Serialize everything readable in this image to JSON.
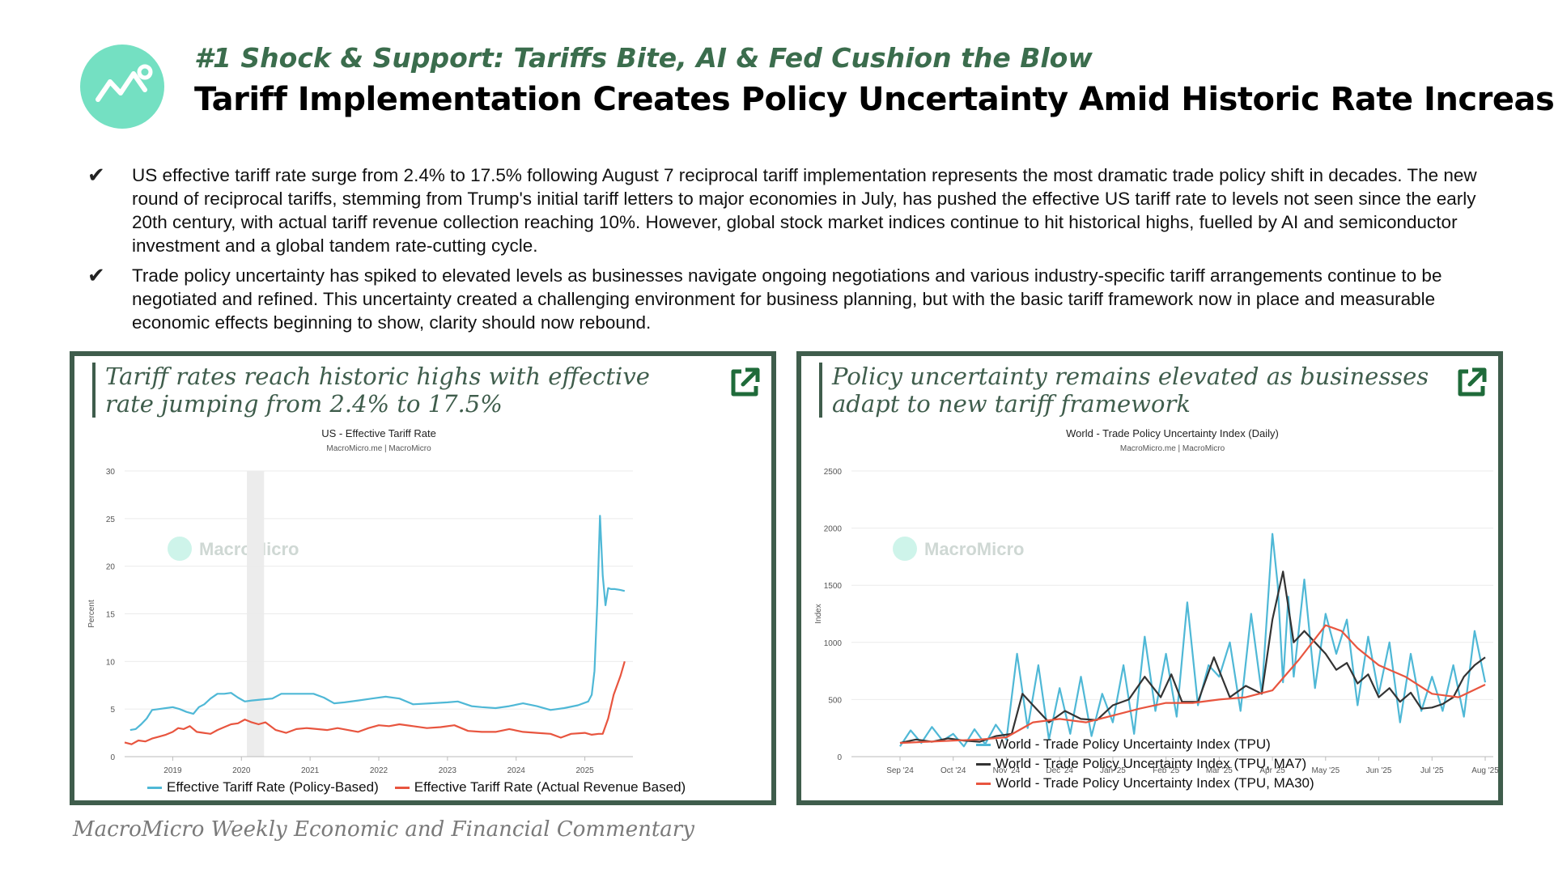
{
  "header": {
    "kicker": "#1 Shock & Support: Tariffs Bite, AI & Fed Cushion the Blow",
    "title": "Tariff Implementation Creates Policy Uncertainty Amid Historic Rate Increases"
  },
  "bullets": [
    "US effective tariff rate surge from 2.4% to 17.5% following August 7 reciprocal tariff implementation represents the most dramatic trade policy shift in decades. The new round of reciprocal tariffs, stemming from Trump's initial tariff letters to major economies in July, has pushed the effective US tariff rate to levels not seen since the early 20th century, with actual tariff revenue collection reaching 10%. However, global stock market indices continue to hit historical highs, fuelled by AI and semiconductor investment and a global tandem rate-cutting cycle.",
    "Trade policy uncertainty has spiked to elevated levels as businesses navigate ongoing negotiations and various industry-specific tariff arrangements continue to be negotiated and refined. This uncertainty created a challenging environment for business planning, but with the basic tariff framework now in place and measurable economic effects beginning to show, clarity should now rebound."
  ],
  "panels": {
    "left": {
      "heading": "Tariff rates reach historic highs with effective rate jumping from 2.4% to 17.5%"
    },
    "right": {
      "heading": "Policy uncertainty remains elevated as businesses adapt to new tariff framework"
    }
  },
  "footer": "MacroMicro Weekly Economic and Financial Commentary",
  "watermark": "MacroMicro",
  "colors": {
    "teal": "#74e0c2",
    "dark_green": "#3f5d4c",
    "blue": "#4fb8d6",
    "red": "#e8553f",
    "black": "#333333"
  },
  "chart_data": [
    {
      "type": "line",
      "title": "US - Effective Tariff Rate",
      "subtitle": "MacroMicro.me | MacroMicro",
      "ylabel": "Percent",
      "ylim": [
        0,
        30
      ],
      "yticks": [
        0,
        5,
        10,
        15,
        20,
        25,
        30
      ],
      "xlim": [
        2018.3,
        2025.7
      ],
      "xticks": [
        2019,
        2020,
        2021,
        2022,
        2023,
        2024,
        2025
      ],
      "xtick_labels": [
        "2019",
        "2020",
        "2021",
        "2022",
        "2023",
        "2024",
        "2025"
      ],
      "shaded_range": [
        2020.08,
        2020.33
      ],
      "legend_position": "bottom",
      "series": [
        {
          "name": "Effective Tariff Rate (Policy-Based)",
          "color": "#4fb8d6",
          "x": [
            2018.38,
            2018.46,
            2018.54,
            2018.62,
            2018.7,
            2018.8,
            2018.9,
            2019.0,
            2019.1,
            2019.2,
            2019.3,
            2019.38,
            2019.46,
            2019.55,
            2019.65,
            2019.75,
            2019.85,
            2019.95,
            2020.05,
            2020.15,
            2020.3,
            2020.45,
            2020.58,
            2020.75,
            2020.9,
            2021.05,
            2021.2,
            2021.35,
            2021.5,
            2021.7,
            2021.9,
            2022.1,
            2022.3,
            2022.5,
            2022.75,
            2023.0,
            2023.15,
            2023.35,
            2023.5,
            2023.7,
            2023.9,
            2024.1,
            2024.3,
            2024.5,
            2024.7,
            2024.9,
            2025.05,
            2025.1,
            2025.14,
            2025.18,
            2025.22,
            2025.26,
            2025.3,
            2025.34,
            2025.38,
            2025.44,
            2025.52,
            2025.58
          ],
          "values": [
            2.8,
            2.9,
            3.4,
            4.0,
            4.9,
            5.0,
            5.1,
            5.2,
            5.0,
            4.7,
            4.5,
            5.2,
            5.5,
            6.1,
            6.6,
            6.6,
            6.7,
            6.2,
            5.8,
            5.9,
            6.0,
            6.1,
            6.6,
            6.6,
            6.6,
            6.6,
            6.2,
            5.6,
            5.7,
            5.9,
            6.1,
            6.3,
            6.1,
            5.5,
            5.6,
            5.7,
            5.8,
            5.3,
            5.2,
            5.1,
            5.3,
            5.6,
            5.3,
            4.9,
            5.1,
            5.4,
            5.8,
            6.5,
            9.0,
            16.0,
            25.3,
            19.0,
            15.9,
            17.7,
            17.6,
            17.6,
            17.5,
            17.4
          ]
        },
        {
          "name": "Effective Tariff Rate (Actual Revenue Based)",
          "color": "#e8553f",
          "x": [
            2018.3,
            2018.4,
            2018.5,
            2018.6,
            2018.7,
            2018.8,
            2018.9,
            2019.0,
            2019.08,
            2019.16,
            2019.25,
            2019.35,
            2019.45,
            2019.55,
            2019.65,
            2019.75,
            2019.85,
            2019.95,
            2020.05,
            2020.15,
            2020.25,
            2020.35,
            2020.5,
            2020.65,
            2020.8,
            2020.95,
            2021.1,
            2021.25,
            2021.4,
            2021.55,
            2021.7,
            2021.85,
            2022.0,
            2022.15,
            2022.3,
            2022.5,
            2022.7,
            2022.9,
            2023.1,
            2023.3,
            2023.5,
            2023.7,
            2023.9,
            2024.1,
            2024.3,
            2024.5,
            2024.65,
            2024.8,
            2025.0,
            2025.1,
            2025.2,
            2025.26,
            2025.34,
            2025.42,
            2025.52,
            2025.58
          ],
          "values": [
            1.5,
            1.3,
            1.7,
            1.6,
            1.9,
            2.1,
            2.3,
            2.6,
            3.0,
            2.9,
            3.2,
            2.6,
            2.5,
            2.4,
            2.8,
            3.1,
            3.4,
            3.5,
            3.9,
            3.6,
            3.4,
            3.6,
            2.8,
            2.5,
            2.9,
            3.0,
            2.9,
            2.8,
            3.0,
            2.8,
            2.6,
            3.0,
            3.3,
            3.2,
            3.4,
            3.2,
            3.0,
            3.1,
            3.3,
            2.7,
            2.6,
            2.6,
            2.9,
            2.6,
            2.5,
            2.4,
            2.0,
            2.4,
            2.5,
            2.3,
            2.4,
            2.4,
            4.0,
            6.5,
            8.5,
            10.0
          ]
        }
      ]
    },
    {
      "type": "line",
      "title": "World - Trade Policy Uncertainty Index (Daily)",
      "subtitle": "MacroMicro.me | MacroMicro",
      "ylabel": "Index",
      "ylim": [
        0,
        2500
      ],
      "yticks": [
        0,
        500,
        1000,
        1500,
        2000,
        2500
      ],
      "xtick_labels": [
        "Sep '24",
        "Oct '24",
        "Nov '24",
        "Dec '24",
        "Jan '25",
        "Feb '25",
        "Mar '25",
        "Apr '25",
        "May '25",
        "Jun '25",
        "Jul '25",
        "Aug '25"
      ],
      "legend_position": "bottom",
      "series": [
        {
          "name": "World - Trade Policy Uncertainty Index (TPU)",
          "color": "#4fb8d6",
          "x_month_index": [
            0.0,
            0.2,
            0.4,
            0.6,
            0.8,
            1.0,
            1.2,
            1.4,
            1.6,
            1.8,
            2.0,
            2.2,
            2.4,
            2.6,
            2.8,
            3.0,
            3.2,
            3.4,
            3.6,
            3.8,
            4.0,
            4.2,
            4.4,
            4.6,
            4.8,
            5.0,
            5.2,
            5.4,
            5.6,
            5.8,
            6.0,
            6.2,
            6.4,
            6.6,
            6.8,
            7.0,
            7.1,
            7.2,
            7.3,
            7.4,
            7.6,
            7.8,
            8.0,
            8.2,
            8.4,
            8.6,
            8.8,
            9.0,
            9.2,
            9.4,
            9.6,
            9.8,
            10.0,
            10.2,
            10.4,
            10.6,
            10.8,
            11.0
          ],
          "values": [
            90,
            230,
            120,
            260,
            140,
            200,
            90,
            240,
            110,
            280,
            150,
            900,
            250,
            800,
            150,
            600,
            200,
            700,
            180,
            550,
            300,
            800,
            200,
            1050,
            400,
            900,
            350,
            1350,
            450,
            800,
            700,
            1000,
            400,
            1250,
            550,
            1950,
            1500,
            650,
            1400,
            700,
            1550,
            600,
            1250,
            900,
            1200,
            450,
            1050,
            550,
            1000,
            300,
            900,
            400,
            700,
            400,
            800,
            350,
            1100,
            650
          ]
        },
        {
          "name": "World - Trade Policy Uncertainty Index (TPU, MA7)",
          "color": "#333333",
          "x_month_index": [
            0.0,
            0.3,
            0.6,
            0.9,
            1.2,
            1.5,
            1.8,
            2.1,
            2.3,
            2.5,
            2.8,
            3.1,
            3.4,
            3.7,
            4.0,
            4.3,
            4.6,
            4.9,
            5.1,
            5.3,
            5.6,
            5.9,
            6.2,
            6.5,
            6.8,
            7.0,
            7.2,
            7.4,
            7.6,
            7.8,
            8.0,
            8.2,
            8.4,
            8.6,
            8.8,
            9.0,
            9.2,
            9.4,
            9.6,
            9.8,
            10.0,
            10.2,
            10.4,
            10.6,
            10.8,
            11.0
          ],
          "values": [
            120,
            150,
            130,
            160,
            140,
            130,
            180,
            200,
            550,
            450,
            300,
            400,
            330,
            320,
            450,
            500,
            700,
            520,
            720,
            480,
            480,
            870,
            520,
            620,
            550,
            1200,
            1620,
            1000,
            1100,
            1000,
            900,
            760,
            820,
            640,
            720,
            520,
            600,
            480,
            560,
            420,
            430,
            460,
            520,
            700,
            800,
            870
          ]
        },
        {
          "name": "World - Trade Policy Uncertainty Index (TPU, MA30)",
          "color": "#e8553f",
          "x_month_index": [
            0.0,
            0.5,
            1.0,
            1.5,
            2.0,
            2.5,
            3.0,
            3.5,
            4.0,
            4.5,
            5.0,
            5.5,
            6.0,
            6.5,
            7.0,
            7.5,
            8.0,
            8.3,
            8.6,
            9.0,
            9.5,
            10.0,
            10.5,
            11.0
          ],
          "values": [
            120,
            130,
            140,
            150,
            170,
            300,
            330,
            300,
            360,
            420,
            470,
            470,
            500,
            520,
            580,
            850,
            1150,
            1100,
            950,
            800,
            700,
            550,
            520,
            630
          ]
        }
      ]
    }
  ]
}
